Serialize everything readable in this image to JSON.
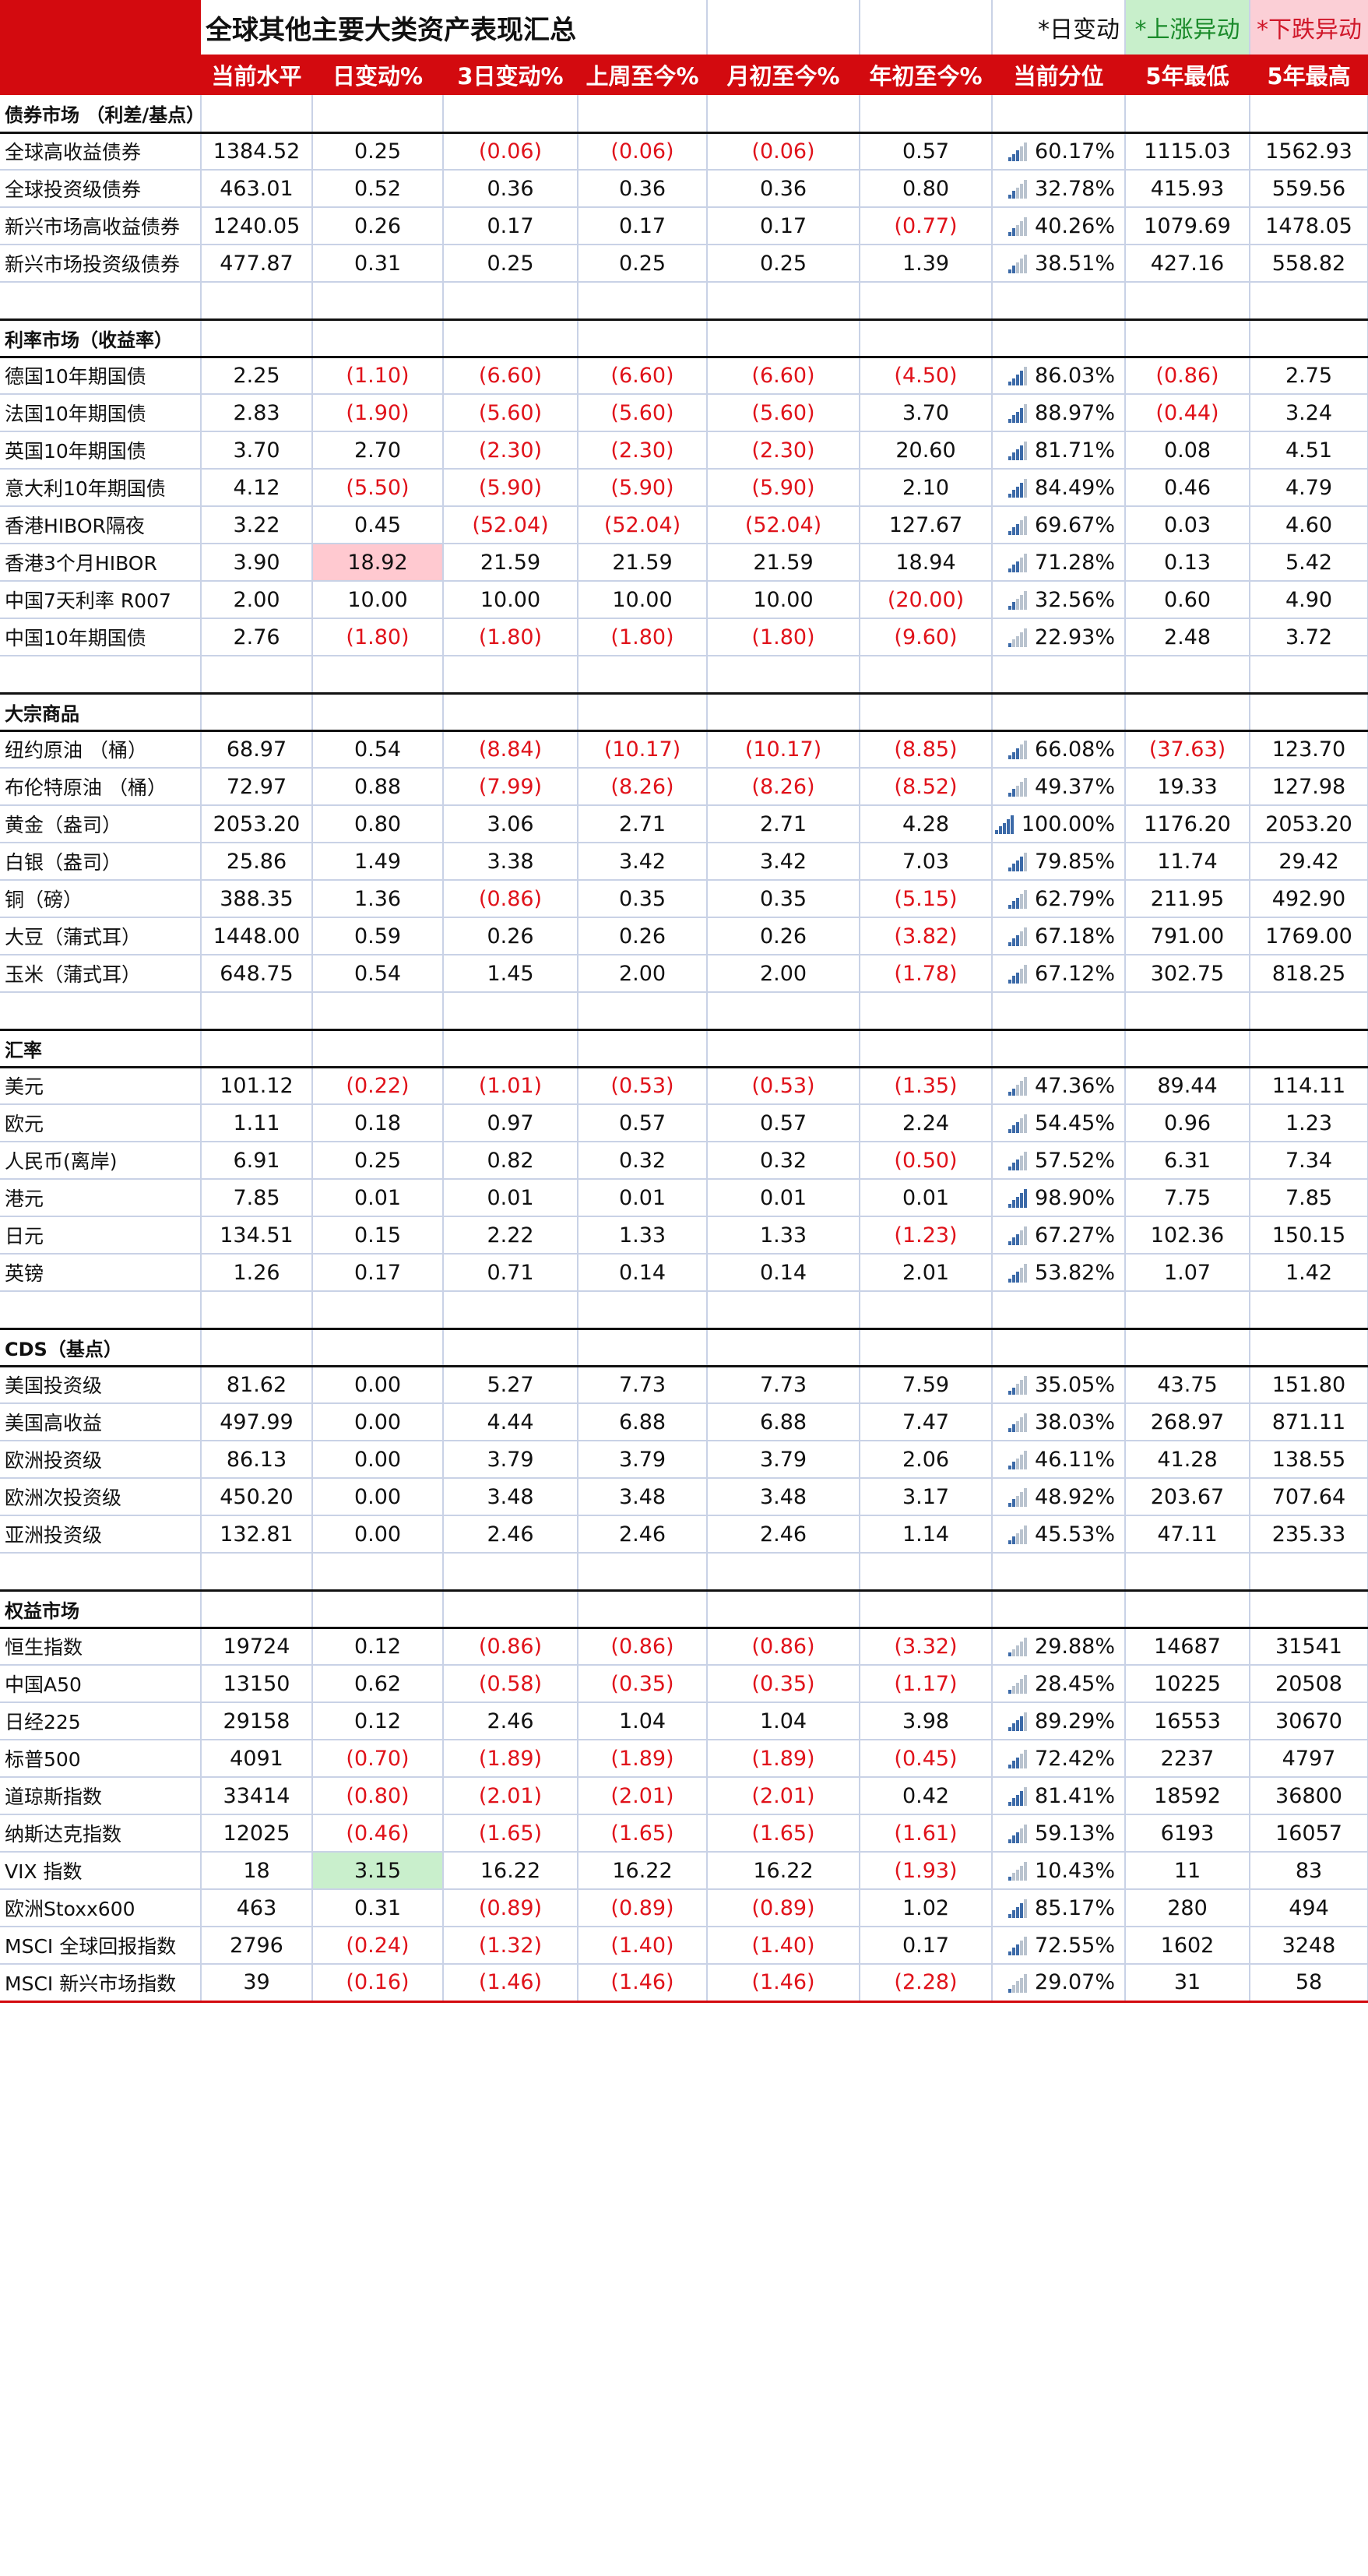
{
  "title": "全球其他主要大类资产表现汇总",
  "legend": {
    "daily": "*日变动",
    "up": "*上涨异动",
    "down": "*下跌异动"
  },
  "colors": {
    "header_red": "#d30a0f",
    "negative_red": "#e0121a",
    "up_green_bg": "#c9efcc",
    "down_red_bg": "#ffc9d0",
    "bar_blue": "#3c6aa8",
    "bar_grey": "#b9c3cf"
  },
  "columns": [
    "当前水平",
    "日变动%",
    "3日变动%",
    "上周至今%",
    "月初至今%",
    "年初至今%",
    "当前分位",
    "5年最低",
    "5年最高"
  ],
  "sections": [
    {
      "title": "债券市场 （利差/基点）",
      "rows": [
        {
          "name": "全球高收益债券",
          "level": "1384.52",
          "d1": "0.25",
          "d3": "(0.06)",
          "wtd": "(0.06)",
          "mtd": "(0.06)",
          "ytd": "0.57",
          "pct": "60.17%",
          "bars": 3,
          "low": "1115.03",
          "high": "1562.93"
        },
        {
          "name": "全球投资级债券",
          "level": "463.01",
          "d1": "0.52",
          "d3": "0.36",
          "wtd": "0.36",
          "mtd": "0.36",
          "ytd": "0.80",
          "pct": "32.78%",
          "bars": 2,
          "low": "415.93",
          "high": "559.56"
        },
        {
          "name": "新兴市场高收益债券",
          "level": "1240.05",
          "d1": "0.26",
          "d3": "0.17",
          "wtd": "0.17",
          "mtd": "0.17",
          "ytd": "(0.77)",
          "pct": "40.26%",
          "bars": 2,
          "low": "1079.69",
          "high": "1478.05"
        },
        {
          "name": "新兴市场投资级债券",
          "level": "477.87",
          "d1": "0.31",
          "d3": "0.25",
          "wtd": "0.25",
          "mtd": "0.25",
          "ytd": "1.39",
          "pct": "38.51%",
          "bars": 2,
          "low": "427.16",
          "high": "558.82"
        }
      ]
    },
    {
      "title": "利率市场（收益率）",
      "rows": [
        {
          "name": "德国10年期国债",
          "level": "2.25",
          "d1": "(1.10)",
          "d3": "(6.60)",
          "wtd": "(6.60)",
          "mtd": "(6.60)",
          "ytd": "(4.50)",
          "pct": "86.03%",
          "bars": 4,
          "low": "(0.86)",
          "high": "2.75"
        },
        {
          "name": "法国10年期国债",
          "level": "2.83",
          "d1": "(1.90)",
          "d3": "(5.60)",
          "wtd": "(5.60)",
          "mtd": "(5.60)",
          "ytd": "3.70",
          "pct": "88.97%",
          "bars": 4,
          "low": "(0.44)",
          "high": "3.24"
        },
        {
          "name": "英国10年期国债",
          "level": "3.70",
          "d1": "2.70",
          "d3": "(2.30)",
          "wtd": "(2.30)",
          "mtd": "(2.30)",
          "ytd": "20.60",
          "pct": "81.71%",
          "bars": 4,
          "low": "0.08",
          "high": "4.51"
        },
        {
          "name": "意大利10年期国债",
          "level": "4.12",
          "d1": "(5.50)",
          "d3": "(5.90)",
          "wtd": "(5.90)",
          "mtd": "(5.90)",
          "ytd": "2.10",
          "pct": "84.49%",
          "bars": 4,
          "low": "0.46",
          "high": "4.79"
        },
        {
          "name": "香港HIBOR隔夜",
          "level": "3.22",
          "d1": "0.45",
          "d3": "(52.04)",
          "wtd": "(52.04)",
          "mtd": "(52.04)",
          "ytd": "127.67",
          "pct": "69.67%",
          "bars": 3,
          "low": "0.03",
          "high": "4.60"
        },
        {
          "name": "香港3个月HIBOR",
          "level": "3.90",
          "d1": "18.92",
          "d1_flag": "down",
          "d3": "21.59",
          "wtd": "21.59",
          "mtd": "21.59",
          "ytd": "18.94",
          "pct": "71.28%",
          "bars": 3,
          "low": "0.13",
          "high": "5.42"
        },
        {
          "name": "中国7天利率 R007",
          "level": "2.00",
          "d1": "10.00",
          "d3": "10.00",
          "wtd": "10.00",
          "mtd": "10.00",
          "ytd": "(20.00)",
          "pct": "32.56%",
          "bars": 2,
          "low": "0.60",
          "high": "4.90"
        },
        {
          "name": "中国10年期国债",
          "level": "2.76",
          "d1": "(1.80)",
          "d3": "(1.80)",
          "wtd": "(1.80)",
          "mtd": "(1.80)",
          "ytd": "(9.60)",
          "pct": "22.93%",
          "bars": 1,
          "low": "2.48",
          "high": "3.72"
        }
      ]
    },
    {
      "title": "大宗商品",
      "rows": [
        {
          "name": "纽约原油 （桶）",
          "level": "68.97",
          "d1": "0.54",
          "d3": "(8.84)",
          "wtd": "(10.17)",
          "mtd": "(10.17)",
          "ytd": "(8.85)",
          "pct": "66.08%",
          "bars": 3,
          "low": "(37.63)",
          "high": "123.70"
        },
        {
          "name": "布伦特原油 （桶）",
          "level": "72.97",
          "d1": "0.88",
          "d3": "(7.99)",
          "wtd": "(8.26)",
          "mtd": "(8.26)",
          "ytd": "(8.52)",
          "pct": "49.37%",
          "bars": 2,
          "low": "19.33",
          "high": "127.98"
        },
        {
          "name": "黄金（盎司）",
          "level": "2053.20",
          "d1": "0.80",
          "d3": "3.06",
          "wtd": "2.71",
          "mtd": "2.71",
          "ytd": "4.28",
          "pct": "100.00%",
          "bars": 5,
          "low": "1176.20",
          "high": "2053.20"
        },
        {
          "name": "白银（盎司）",
          "level": "25.86",
          "d1": "1.49",
          "d3": "3.38",
          "wtd": "3.42",
          "mtd": "3.42",
          "ytd": "7.03",
          "pct": "79.85%",
          "bars": 4,
          "low": "11.74",
          "high": "29.42"
        },
        {
          "name": "铜（磅）",
          "level": "388.35",
          "d1": "1.36",
          "d3": "(0.86)",
          "wtd": "0.35",
          "mtd": "0.35",
          "ytd": "(5.15)",
          "pct": "62.79%",
          "bars": 3,
          "low": "211.95",
          "high": "492.90"
        },
        {
          "name": "大豆（蒲式耳）",
          "level": "1448.00",
          "d1": "0.59",
          "d3": "0.26",
          "wtd": "0.26",
          "mtd": "0.26",
          "ytd": "(3.82)",
          "pct": "67.18%",
          "bars": 3,
          "low": "791.00",
          "high": "1769.00"
        },
        {
          "name": "玉米（蒲式耳）",
          "level": "648.75",
          "d1": "0.54",
          "d3": "1.45",
          "wtd": "2.00",
          "mtd": "2.00",
          "ytd": "(1.78)",
          "pct": "67.12%",
          "bars": 3,
          "low": "302.75",
          "high": "818.25"
        }
      ]
    },
    {
      "title": "汇率",
      "rows": [
        {
          "name": "美元",
          "level": "101.12",
          "d1": "(0.22)",
          "d3": "(1.01)",
          "wtd": "(0.53)",
          "mtd": "(0.53)",
          "ytd": "(1.35)",
          "pct": "47.36%",
          "bars": 2,
          "low": "89.44",
          "high": "114.11"
        },
        {
          "name": "欧元",
          "level": "1.11",
          "d1": "0.18",
          "d3": "0.97",
          "wtd": "0.57",
          "mtd": "0.57",
          "ytd": "2.24",
          "pct": "54.45%",
          "bars": 3,
          "low": "0.96",
          "high": "1.23"
        },
        {
          "name": "人民币(离岸)",
          "level": "6.91",
          "d1": "0.25",
          "d3": "0.82",
          "wtd": "0.32",
          "mtd": "0.32",
          "ytd": "(0.50)",
          "pct": "57.52%",
          "bars": 3,
          "low": "6.31",
          "high": "7.34"
        },
        {
          "name": "港元",
          "level": "7.85",
          "d1": "0.01",
          "d3": "0.01",
          "wtd": "0.01",
          "mtd": "0.01",
          "ytd": "0.01",
          "pct": "98.90%",
          "bars": 5,
          "low": "7.75",
          "high": "7.85"
        },
        {
          "name": "日元",
          "level": "134.51",
          "d1": "0.15",
          "d3": "2.22",
          "wtd": "1.33",
          "mtd": "1.33",
          "ytd": "(1.23)",
          "pct": "67.27%",
          "bars": 3,
          "low": "102.36",
          "high": "150.15"
        },
        {
          "name": "英镑",
          "level": "1.26",
          "d1": "0.17",
          "d3": "0.71",
          "wtd": "0.14",
          "mtd": "0.14",
          "ytd": "2.01",
          "pct": "53.82%",
          "bars": 3,
          "low": "1.07",
          "high": "1.42"
        }
      ]
    },
    {
      "title": "CDS（基点）",
      "rows": [
        {
          "name": "美国投资级",
          "level": "81.62",
          "d1": "0.00",
          "d3": "5.27",
          "wtd": "7.73",
          "mtd": "7.73",
          "ytd": "7.59",
          "pct": "35.05%",
          "bars": 2,
          "low": "43.75",
          "high": "151.80"
        },
        {
          "name": "美国高收益",
          "level": "497.99",
          "d1": "0.00",
          "d3": "4.44",
          "wtd": "6.88",
          "mtd": "6.88",
          "ytd": "7.47",
          "pct": "38.03%",
          "bars": 2,
          "low": "268.97",
          "high": "871.11"
        },
        {
          "name": "欧洲投资级",
          "level": "86.13",
          "d1": "0.00",
          "d3": "3.79",
          "wtd": "3.79",
          "mtd": "3.79",
          "ytd": "2.06",
          "pct": "46.11%",
          "bars": 2,
          "low": "41.28",
          "high": "138.55"
        },
        {
          "name": "欧洲次投资级",
          "level": "450.20",
          "d1": "0.00",
          "d3": "3.48",
          "wtd": "3.48",
          "mtd": "3.48",
          "ytd": "3.17",
          "pct": "48.92%",
          "bars": 2,
          "low": "203.67",
          "high": "707.64"
        },
        {
          "name": "亚洲投资级",
          "level": "132.81",
          "d1": "0.00",
          "d3": "2.46",
          "wtd": "2.46",
          "mtd": "2.46",
          "ytd": "1.14",
          "pct": "45.53%",
          "bars": 2,
          "low": "47.11",
          "high": "235.33"
        }
      ]
    },
    {
      "title": "权益市场",
      "rows": [
        {
          "name": "恒生指数",
          "level": "19724",
          "d1": "0.12",
          "d3": "(0.86)",
          "wtd": "(0.86)",
          "mtd": "(0.86)",
          "ytd": "(3.32)",
          "pct": "29.88%",
          "bars": 1,
          "low": "14687",
          "high": "31541"
        },
        {
          "name": "中国A50",
          "level": "13150",
          "d1": "0.62",
          "d3": "(0.58)",
          "wtd": "(0.35)",
          "mtd": "(0.35)",
          "ytd": "(1.17)",
          "pct": "28.45%",
          "bars": 1,
          "low": "10225",
          "high": "20508"
        },
        {
          "name": "日经225",
          "level": "29158",
          "d1": "0.12",
          "d3": "2.46",
          "wtd": "1.04",
          "mtd": "1.04",
          "ytd": "3.98",
          "pct": "89.29%",
          "bars": 4,
          "low": "16553",
          "high": "30670"
        },
        {
          "name": "标普500",
          "level": "4091",
          "d1": "(0.70)",
          "d3": "(1.89)",
          "wtd": "(1.89)",
          "mtd": "(1.89)",
          "ytd": "(0.45)",
          "pct": "72.42%",
          "bars": 3,
          "low": "2237",
          "high": "4797"
        },
        {
          "name": "道琼斯指数",
          "level": "33414",
          "d1": "(0.80)",
          "d3": "(2.01)",
          "wtd": "(2.01)",
          "mtd": "(2.01)",
          "ytd": "0.42",
          "pct": "81.41%",
          "bars": 4,
          "low": "18592",
          "high": "36800"
        },
        {
          "name": "纳斯达克指数",
          "level": "12025",
          "d1": "(0.46)",
          "d3": "(1.65)",
          "wtd": "(1.65)",
          "mtd": "(1.65)",
          "ytd": "(1.61)",
          "pct": "59.13%",
          "bars": 3,
          "low": "6193",
          "high": "16057"
        },
        {
          "name": "VIX 指数",
          "level": "18",
          "d1": "3.15",
          "d1_flag": "up",
          "d3": "16.22",
          "wtd": "16.22",
          "mtd": "16.22",
          "ytd": "(1.93)",
          "pct": "10.43%",
          "bars": 1,
          "low": "11",
          "high": "83"
        },
        {
          "name": "欧洲Stoxx600",
          "level": "463",
          "d1": "0.31",
          "d3": "(0.89)",
          "wtd": "(0.89)",
          "mtd": "(0.89)",
          "ytd": "1.02",
          "pct": "85.17%",
          "bars": 4,
          "low": "280",
          "high": "494"
        },
        {
          "name": "MSCI 全球回报指数",
          "level": "2796",
          "d1": "(0.24)",
          "d3": "(1.32)",
          "wtd": "(1.40)",
          "mtd": "(1.40)",
          "ytd": "0.17",
          "pct": "72.55%",
          "bars": 3,
          "low": "1602",
          "high": "3248"
        },
        {
          "name": "MSCI 新兴市场指数",
          "level": "39",
          "d1": "(0.16)",
          "d3": "(1.46)",
          "wtd": "(1.46)",
          "mtd": "(1.46)",
          "ytd": "(2.28)",
          "pct": "29.07%",
          "bars": 1,
          "low": "31",
          "high": "58"
        }
      ]
    }
  ]
}
